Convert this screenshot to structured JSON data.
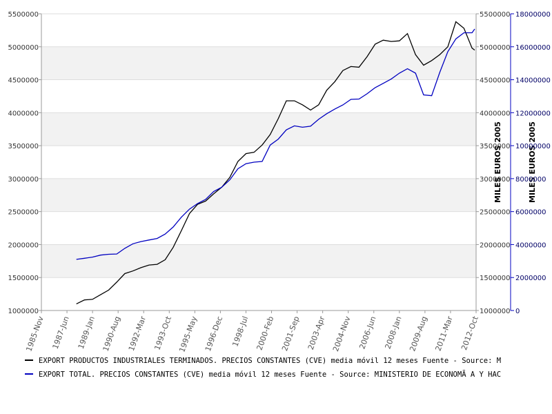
{
  "chart_data": {
    "type": "line",
    "x_format": "YYYY-MM",
    "xlim": [
      "1985-11",
      "2012-10"
    ],
    "xticks": [
      {
        "value": "1985-11",
        "label": "1985-Nov"
      },
      {
        "value": "1987-06",
        "label": "1987-Jun"
      },
      {
        "value": "1989-01",
        "label": "1989-Jan"
      },
      {
        "value": "1990-08",
        "label": "1990-Aug"
      },
      {
        "value": "1992-03",
        "label": "1992-Mar"
      },
      {
        "value": "1993-10",
        "label": "1993-Oct"
      },
      {
        "value": "1995-05",
        "label": "1995-May"
      },
      {
        "value": "1996-12",
        "label": "1996-Dec"
      },
      {
        "value": "1998-07",
        "label": "1998-Jul"
      },
      {
        "value": "2000-02",
        "label": "2000-Feb"
      },
      {
        "value": "2001-09",
        "label": "2001-Sep"
      },
      {
        "value": "2003-04",
        "label": "2003-Apr"
      },
      {
        "value": "2004-11",
        "label": "2004-Nov"
      },
      {
        "value": "2006-06",
        "label": "2006-Jun"
      },
      {
        "value": "2008-01",
        "label": "2008-Jan"
      },
      {
        "value": "2009-08",
        "label": "2009-Aug"
      },
      {
        "value": "2011-03",
        "label": "2011-Mar"
      },
      {
        "value": "2012-10",
        "label": "2012-Oct"
      }
    ],
    "ylim": [
      1000000,
      5500000
    ],
    "yticks": [
      1000000,
      1500000,
      2000000,
      2500000,
      3000000,
      3500000,
      4000000,
      4500000,
      5000000,
      5500000
    ],
    "y2lim": [
      0,
      18000000
    ],
    "y2ticks": [
      0,
      2000000,
      4000000,
      6000000,
      8000000,
      10000000,
      12000000,
      14000000,
      16000000,
      18000000
    ],
    "y_label": "MILES EUROS 2005",
    "y2_label": "MILES EUROS 2005",
    "grid": true,
    "legend": "bottom",
    "x": [
      "1988-01",
      "1988-07",
      "1989-01",
      "1989-07",
      "1990-01",
      "1990-07",
      "1991-01",
      "1991-07",
      "1992-01",
      "1992-07",
      "1993-01",
      "1993-07",
      "1994-01",
      "1994-07",
      "1995-01",
      "1995-07",
      "1996-01",
      "1996-07",
      "1997-01",
      "1997-07",
      "1998-01",
      "1998-07",
      "1999-01",
      "1999-07",
      "2000-01",
      "2000-07",
      "2001-01",
      "2001-07",
      "2002-01",
      "2002-07",
      "2003-01",
      "2003-07",
      "2004-01",
      "2004-07",
      "2005-01",
      "2005-07",
      "2006-01",
      "2006-07",
      "2007-01",
      "2007-07",
      "2008-01",
      "2008-07",
      "2009-01",
      "2009-07",
      "2010-01",
      "2010-07",
      "2011-01",
      "2011-07",
      "2012-01",
      "2012-07",
      "2012-09"
    ],
    "series": [
      {
        "name": "EXPORT PRODUCTOS INDUSTRIALES TERMINADOS. PRECIOS CONSTANTES (CVE) media móvil 12 meses  Fuente - Source: M",
        "color": "#000000",
        "axis": "y",
        "values": [
          1100000,
          1160000,
          1170000,
          1240000,
          1310000,
          1430000,
          1560000,
          1600000,
          1650000,
          1690000,
          1700000,
          1770000,
          1960000,
          2210000,
          2470000,
          2610000,
          2660000,
          2770000,
          2870000,
          3020000,
          3260000,
          3380000,
          3400000,
          3510000,
          3670000,
          3910000,
          4180000,
          4180000,
          4120000,
          4040000,
          4120000,
          4340000,
          4470000,
          4640000,
          4700000,
          4690000,
          4850000,
          5040000,
          5100000,
          5080000,
          5090000,
          5200000,
          4880000,
          4720000,
          4790000,
          4880000,
          5000000,
          5380000,
          5280000,
          4980000,
          4950000
        ]
      },
      {
        "name": "EXPORT TOTAL. PRECIOS CONSTANTES (CVE) media móvil 12 meses  Fuente - Source: MINISTERIO DE ECONOMÃ A Y HAC",
        "color": "#0000c0",
        "axis": "y2",
        "values": [
          3100000,
          3170000,
          3240000,
          3360000,
          3410000,
          3430000,
          3770000,
          4050000,
          4180000,
          4280000,
          4370000,
          4640000,
          5070000,
          5660000,
          6150000,
          6490000,
          6740000,
          7220000,
          7480000,
          7930000,
          8600000,
          8910000,
          9000000,
          9040000,
          10040000,
          10400000,
          10960000,
          11200000,
          11120000,
          11180000,
          11600000,
          11940000,
          12220000,
          12470000,
          12810000,
          12830000,
          13150000,
          13520000,
          13780000,
          14050000,
          14400000,
          14670000,
          14400000,
          13080000,
          13030000,
          14440000,
          15700000,
          16480000,
          16850000,
          16850000,
          17080000
        ]
      }
    ]
  }
}
